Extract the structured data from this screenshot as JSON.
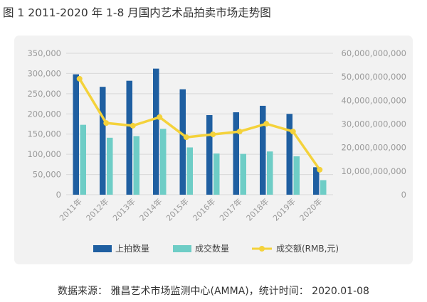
{
  "figure": {
    "title": "图 1    2011-2020 年 1-8 月国内艺术品拍卖市场走势图",
    "source": "数据来源：  雅昌艺术市场监测中心(AMMA)，统计时间：  2020.01-08"
  },
  "colors": {
    "panel_bg": "#f2f2f2",
    "grid": "#d8d8d8",
    "bar_lots": "#1f5fa1",
    "bar_sold": "#6ecdc6",
    "line_turnover": "#f4d23b"
  },
  "chart_data": {
    "type": "bar",
    "categories": [
      "2011年",
      "2012年",
      "2013年",
      "2014年",
      "2015年",
      "2016年",
      "2017年",
      "2018年",
      "2019年",
      "2020年"
    ],
    "y_left": {
      "ylim": [
        0,
        350000
      ],
      "ticks": [
        "0",
        "50,000",
        "100,000",
        "150,000",
        "200,000",
        "250,000",
        "300,000",
        "350,000"
      ]
    },
    "y_right": {
      "ylim": [
        0,
        60000000000
      ],
      "ticks": [
        "0",
        "10,000,000,000",
        "20,000,000,000",
        "30,000,000,000",
        "40,000,000,000",
        "50,000,000,000",
        "60,000,000,000"
      ]
    },
    "grid": true,
    "legend_position": "bottom",
    "series": [
      {
        "name": "上拍数量",
        "type": "bar",
        "axis": "left",
        "values": [
          298000,
          267000,
          282000,
          312000,
          261000,
          197000,
          204000,
          220000,
          200000,
          68000
        ]
      },
      {
        "name": "成交数量",
        "type": "bar",
        "axis": "left",
        "values": [
          173000,
          141000,
          145000,
          163000,
          117000,
          102000,
          101000,
          107000,
          95000,
          36000
        ]
      },
      {
        "name": "成交额(RMB,元)",
        "type": "line",
        "axis": "right",
        "values": [
          49200000000,
          30400000000,
          29300000000,
          32900000000,
          24400000000,
          25600000000,
          26800000000,
          30100000000,
          26800000000,
          10600000000
        ]
      }
    ]
  }
}
